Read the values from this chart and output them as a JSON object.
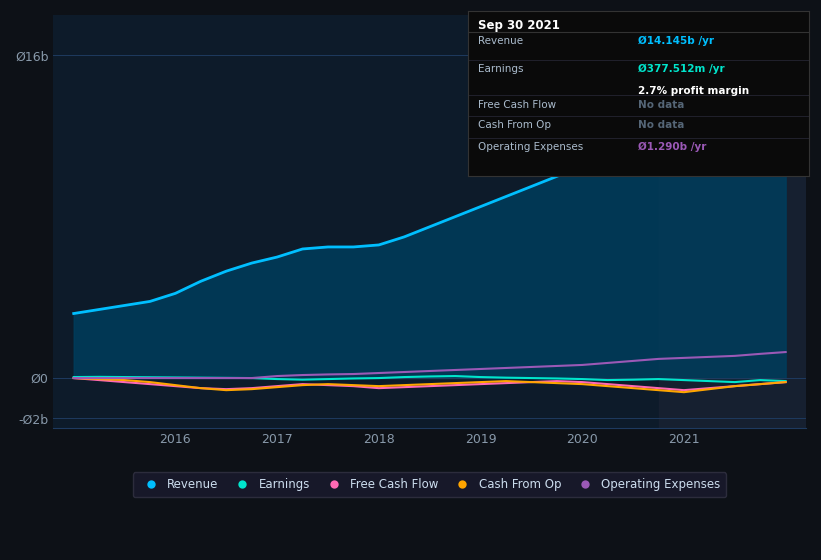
{
  "bg_color": "#0d1117",
  "plot_bg_color": "#0d1b2a",
  "grid_color": "#1e3a5f",
  "tick_label_color": "#8899aa",
  "ylim": [
    -2.5,
    18
  ],
  "x_years": [
    2015.0,
    2015.25,
    2015.5,
    2015.75,
    2016.0,
    2016.25,
    2016.5,
    2016.75,
    2017.0,
    2017.25,
    2017.5,
    2017.75,
    2018.0,
    2018.25,
    2018.5,
    2018.75,
    2019.0,
    2019.25,
    2019.5,
    2019.75,
    2020.0,
    2020.25,
    2020.5,
    2020.75,
    2021.0,
    2021.25,
    2021.5,
    2021.75,
    2022.0
  ],
  "revenue": [
    3.2,
    3.4,
    3.6,
    3.8,
    4.2,
    4.8,
    5.3,
    5.7,
    6.0,
    6.4,
    6.5,
    6.5,
    6.6,
    7.0,
    7.5,
    8.0,
    8.5,
    9.0,
    9.5,
    10.0,
    10.5,
    11.5,
    11.8,
    11.6,
    12.0,
    13.0,
    14.0,
    15.5,
    16.5
  ],
  "earnings": [
    0.05,
    0.06,
    0.05,
    0.04,
    0.03,
    0.02,
    0.01,
    0.0,
    -0.05,
    -0.08,
    -0.05,
    -0.02,
    0.0,
    0.05,
    0.08,
    0.1,
    0.05,
    0.02,
    0.0,
    -0.02,
    -0.05,
    -0.1,
    -0.08,
    -0.05,
    -0.1,
    -0.15,
    -0.2,
    -0.1,
    -0.15
  ],
  "free_cash_flow": [
    0.0,
    -0.1,
    -0.2,
    -0.3,
    -0.4,
    -0.5,
    -0.55,
    -0.5,
    -0.4,
    -0.3,
    -0.35,
    -0.4,
    -0.5,
    -0.45,
    -0.4,
    -0.35,
    -0.3,
    -0.25,
    -0.2,
    -0.15,
    -0.2,
    -0.3,
    -0.4,
    -0.5,
    -0.6,
    -0.5,
    -0.4,
    -0.3,
    -0.2
  ],
  "cash_from_op": [
    0.0,
    -0.05,
    -0.1,
    -0.2,
    -0.35,
    -0.5,
    -0.6,
    -0.55,
    -0.45,
    -0.35,
    -0.3,
    -0.35,
    -0.4,
    -0.35,
    -0.3,
    -0.25,
    -0.2,
    -0.15,
    -0.2,
    -0.25,
    -0.3,
    -0.4,
    -0.5,
    -0.6,
    -0.7,
    -0.55,
    -0.4,
    -0.3,
    -0.2
  ],
  "operating_expenses": [
    0.0,
    0.0,
    0.0,
    0.0,
    0.0,
    0.0,
    0.0,
    0.0,
    0.1,
    0.15,
    0.18,
    0.2,
    0.25,
    0.3,
    0.35,
    0.4,
    0.45,
    0.5,
    0.55,
    0.6,
    0.65,
    0.75,
    0.85,
    0.95,
    1.0,
    1.05,
    1.1,
    1.2,
    1.29
  ],
  "revenue_color": "#00bfff",
  "revenue_fill_color": "#003d5c",
  "earnings_color": "#00e5cc",
  "fcf_color": "#ff69b4",
  "cashop_color": "#ffa500",
  "opex_color": "#9b59b6",
  "xtick_years": [
    2016,
    2017,
    2018,
    2019,
    2020,
    2021
  ],
  "highlight_start": 2020.75,
  "highlight_color": "#162030",
  "legend_items": [
    "Revenue",
    "Earnings",
    "Free Cash Flow",
    "Cash From Op",
    "Operating Expenses"
  ],
  "legend_colors": [
    "#00bfff",
    "#00e5cc",
    "#ff69b4",
    "#ffa500",
    "#9b59b6"
  ],
  "tooltip_title": "Sep 30 2021",
  "tooltip_rows": [
    {
      "label": "Revenue",
      "value": "Ø14.145b /yr",
      "vcolor": "#00bfff",
      "sub": null,
      "sub_color": null
    },
    {
      "label": "Earnings",
      "value": "Ø377.512m /yr",
      "vcolor": "#00e5cc",
      "sub": "2.7% profit margin",
      "sub_color": "white"
    },
    {
      "label": "Free Cash Flow",
      "value": "No data",
      "vcolor": "#556677",
      "sub": null,
      "sub_color": null
    },
    {
      "label": "Cash From Op",
      "value": "No data",
      "vcolor": "#556677",
      "sub": null,
      "sub_color": null
    },
    {
      "label": "Operating Expenses",
      "value": "Ø1.290b /yr",
      "vcolor": "#9b59b6",
      "sub": null,
      "sub_color": null
    }
  ]
}
